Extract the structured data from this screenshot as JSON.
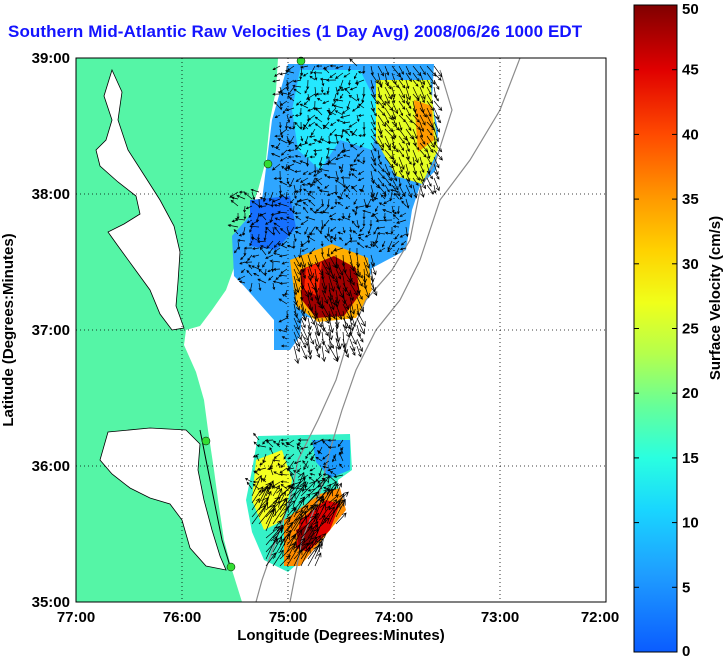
{
  "title": "Southern Mid-Atlantic Raw Velocities (1 Day Avg) 2008/06/26 1000 EDT",
  "x_axis": {
    "label": "Longitude (Degrees:Minutes)",
    "ticks": [
      "77:00",
      "76:00",
      "75:00",
      "74:00",
      "73:00",
      "72:00"
    ]
  },
  "y_axis": {
    "label": "Latitude (Degrees:Minutes)",
    "ticks": [
      "39:00",
      "38:00",
      "37:00",
      "36:00",
      "35:00"
    ]
  },
  "colorbar": {
    "label": "Surface Velocity (cm/s)",
    "ticks": [
      "50",
      "45",
      "40",
      "35",
      "30",
      "25",
      "20",
      "15",
      "10",
      "5",
      "0"
    ],
    "min": 0,
    "max": 50,
    "colormap": "jet"
  },
  "colors": {
    "land": "#55f5a6",
    "ocean": "#ffffff",
    "title": "#1414ff",
    "grid_line": "dotted black",
    "bathymetry": "#8c8c8c",
    "station": "#33dd33"
  },
  "map": {
    "lon_range": [
      "77:00",
      "72:00"
    ],
    "lat_range": [
      "35:00",
      "39:00"
    ],
    "grid": true,
    "shore_stations": 4
  }
}
